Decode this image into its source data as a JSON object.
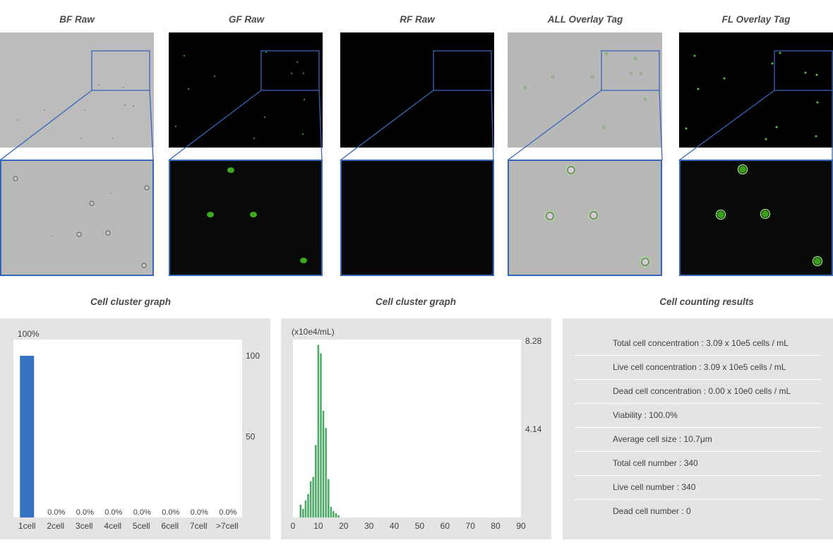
{
  "panels": [
    {
      "title": "BF Raw",
      "theme": "bf"
    },
    {
      "title": "GF Raw",
      "theme": "gf"
    },
    {
      "title": "RF Raw",
      "theme": "rf"
    },
    {
      "title": "ALL Overlay Tag",
      "theme": "all"
    },
    {
      "title": "FL Overlay Tag",
      "theme": "fl"
    }
  ],
  "cluster_graph_title": "Cell cluster graph",
  "size_graph_title": "Cell cluster graph",
  "results_title": "Cell counting results",
  "results": [
    "Total cell concentration : 3.09 x 10e5 cells / mL",
    "Live cell concentration : 3.09 x 10e5 cells / mL",
    "Dead cell concentration : 0.00 x 10e0 cells / mL",
    "Viability : 100.0%",
    "Average cell size : 10.7μm",
    "Total cell number : 340",
    "Live cell number : 340",
    "Dead cell number : 0"
  ],
  "colors": {
    "bar_blue": "#3572c0",
    "bar_green": "#4aaa64",
    "zoom_frame": "#3566b8"
  },
  "chart_data": [
    {
      "type": "bar",
      "title": "Cell cluster graph",
      "categories": [
        "1cell",
        "2cell",
        "3cell",
        "4cell",
        "5cell",
        "6cell",
        "7cell",
        ">7cell"
      ],
      "values": [
        100,
        0,
        0,
        0,
        0,
        0,
        0,
        0
      ],
      "value_labels": [
        "100%",
        "0.0%",
        "0.0%",
        "0.0%",
        "0.0%",
        "0.0%",
        "0.0%",
        "0.0%"
      ],
      "y_ticks": [
        "100",
        "50"
      ],
      "ylim": [
        0,
        110
      ]
    },
    {
      "type": "bar",
      "title": "Cell cluster graph",
      "unit_label": "(x10e4/mL)",
      "x_ticks": [
        "0",
        "10",
        "20",
        "30",
        "40",
        "50",
        "60",
        "70",
        "80",
        "90"
      ],
      "y_ticks": [
        "8.28",
        "4.14"
      ],
      "xlim": [
        0,
        90
      ],
      "ylim": [
        0,
        8.28
      ],
      "x": [
        3,
        4,
        5,
        6,
        7,
        8,
        9,
        10,
        11,
        12,
        13,
        14,
        15,
        16,
        17,
        18,
        19
      ],
      "values": [
        0.6,
        0.4,
        0.8,
        1.1,
        1.7,
        1.9,
        3.4,
        8.1,
        7.7,
        5.0,
        4.2,
        1.8,
        0.5,
        0.3,
        0.2,
        0.1,
        0.0
      ]
    }
  ]
}
